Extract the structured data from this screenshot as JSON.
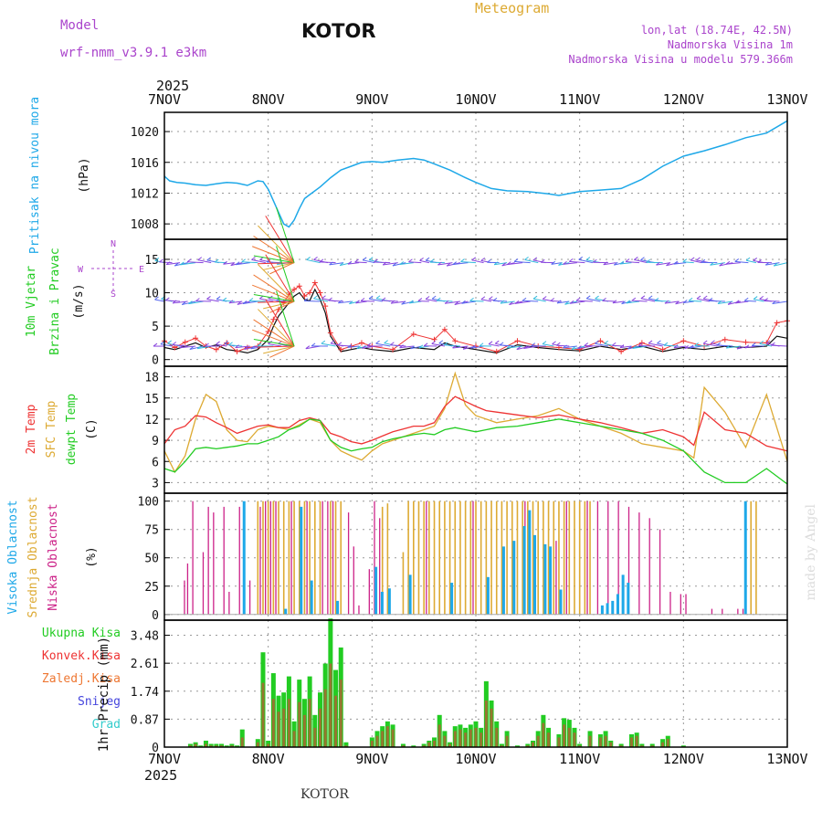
{
  "header": {
    "model_label": "Model",
    "model_name": "wrf-nmm_v3.9.1 e3km",
    "station": "KOTOR",
    "meteogram": "Meteogram",
    "lonlat": "lon,lat (18.74E, 42.5N)",
    "elevation": "Nadmorska Visina 1m",
    "model_elevation": "Nadmorska Visina u modelu 579.366m",
    "year_top": "2025",
    "year_bottom": "2025",
    "footer_station": "KOTOR",
    "credit": "made by Angel"
  },
  "colors": {
    "pressure": "#1ea8e8",
    "wind_green": "#22cc22",
    "temp2m": "#ee3333",
    "sfc": "#ddaa33",
    "dew": "#22cc22",
    "high_cloud": "#1ea8e8",
    "mid_cloud": "#ddaa33",
    "low_cloud": "#cc2288",
    "purple": "#aa44cc",
    "orange": "#ee7733",
    "blue": "#4444dd",
    "teal": "#33cccc"
  },
  "compass": {
    "n": "N",
    "w": "W",
    "e": "E",
    "s": "S"
  },
  "chart_data": {
    "type": "meteogram",
    "x_ticks": [
      "7NOV",
      "8NOV",
      "9NOV",
      "10NOV",
      "11NOV",
      "12NOV",
      "13NOV"
    ],
    "panels": {
      "pressure": {
        "ylabel": "Pritisak na nivou mora",
        "unit": "(hPa)",
        "yticks": [
          1008,
          1012,
          1016,
          1020
        ],
        "ylim": [
          1006,
          1022.5
        ],
        "x_days": [
          0,
          0.05,
          0.12,
          0.2,
          0.3,
          0.4,
          0.5,
          0.6,
          0.7,
          0.8,
          0.9,
          0.95,
          1.0,
          1.05,
          1.1,
          1.15,
          1.2,
          1.25,
          1.3,
          1.35,
          1.4,
          1.5,
          1.6,
          1.7,
          1.8,
          1.9,
          2.0,
          2.1,
          2.25,
          2.4,
          2.5,
          2.6,
          2.75,
          2.9,
          3.0,
          3.15,
          3.3,
          3.5,
          3.7,
          3.8,
          4.0,
          4.2,
          4.4,
          4.6,
          4.8,
          5.0,
          5.2,
          5.4,
          5.6,
          5.8,
          6.0
        ],
        "values": [
          1014.2,
          1013.6,
          1013.4,
          1013.3,
          1013.1,
          1013.0,
          1013.2,
          1013.4,
          1013.3,
          1013.0,
          1013.6,
          1013.5,
          1012.5,
          1011.0,
          1009.5,
          1008.0,
          1007.6,
          1008.5,
          1010.0,
          1011.3,
          1011.8,
          1012.8,
          1014.0,
          1015.0,
          1015.5,
          1016.0,
          1016.1,
          1016.0,
          1016.3,
          1016.5,
          1016.3,
          1015.8,
          1015.0,
          1014.0,
          1013.4,
          1012.6,
          1012.3,
          1012.2,
          1011.9,
          1011.7,
          1012.2,
          1012.4,
          1012.6,
          1013.8,
          1015.5,
          1016.8,
          1017.5,
          1018.3,
          1019.2,
          1019.8,
          1021.4
        ]
      },
      "wind": {
        "ylabel1": "10m Vjetar",
        "ylabel2": "Brzina i Pravac",
        "unit": "(m/s)",
        "yticks": [
          0,
          5,
          10,
          15
        ],
        "ylim": [
          -1,
          18
        ],
        "x_days": [
          0,
          0.1,
          0.2,
          0.3,
          0.4,
          0.5,
          0.6,
          0.7,
          0.8,
          0.9,
          1.0,
          1.05,
          1.1,
          1.15,
          1.2,
          1.25,
          1.3,
          1.35,
          1.4,
          1.45,
          1.5,
          1.55,
          1.6,
          1.7,
          1.8,
          1.9,
          2.0,
          2.2,
          2.4,
          2.6,
          2.7,
          2.8,
          3.0,
          3.2,
          3.4,
          3.6,
          3.8,
          4.0,
          4.2,
          4.4,
          4.6,
          4.8,
          5.0,
          5.2,
          5.4,
          5.6,
          5.8,
          5.9,
          6.0
        ],
        "speed": [
          1.8,
          1.5,
          2.0,
          2.5,
          1.8,
          2.2,
          1.5,
          1.3,
          1.0,
          1.5,
          3.0,
          5.0,
          6.5,
          7.5,
          8.5,
          9.5,
          10.0,
          9.0,
          8.8,
          10.5,
          9.0,
          7.0,
          3.5,
          1.2,
          1.5,
          1.8,
          1.5,
          1.2,
          1.8,
          1.5,
          2.5,
          2.0,
          1.5,
          1.0,
          2.2,
          1.8,
          1.5,
          1.3,
          2.0,
          1.5,
          2.0,
          1.2,
          1.8,
          1.5,
          2.0,
          1.8,
          2.0,
          3.5,
          3.2
        ],
        "gust": [
          2.8,
          1.8,
          2.6,
          3.2,
          2.0,
          1.5,
          2.5,
          1.2,
          1.8,
          2.0,
          4.2,
          6.0,
          7.5,
          8.5,
          9.8,
          10.5,
          11.0,
          9.5,
          10.0,
          11.5,
          10.0,
          8.0,
          4.0,
          1.5,
          2.0,
          2.5,
          2.0,
          1.5,
          3.8,
          3.0,
          4.5,
          2.8,
          2.0,
          1.2,
          2.8,
          2.0,
          1.8,
          1.5,
          2.8,
          1.2,
          2.5,
          1.5,
          2.8,
          2.0,
          3.0,
          2.6,
          2.5,
          5.5,
          5.8
        ]
      },
      "temperature": {
        "ylabel_t2m": "2m Temp",
        "ylabel_sfc": "SFC Temp",
        "ylabel_dew": "dewpt Temp",
        "unit": "(C)",
        "yticks": [
          3,
          6,
          9,
          12,
          15,
          18
        ],
        "ylim": [
          1.5,
          19.5
        ],
        "x_days": [
          0,
          0.1,
          0.2,
          0.3,
          0.4,
          0.5,
          0.6,
          0.7,
          0.8,
          0.9,
          1.0,
          1.1,
          1.2,
          1.3,
          1.4,
          1.5,
          1.6,
          1.7,
          1.8,
          1.9,
          2.0,
          2.1,
          2.2,
          2.3,
          2.4,
          2.5,
          2.6,
          2.7,
          2.8,
          2.9,
          3.0,
          3.1,
          3.2,
          3.4,
          3.6,
          3.8,
          4.0,
          4.2,
          4.4,
          4.6,
          4.8,
          5.0,
          5.1,
          5.2,
          5.4,
          5.6,
          5.8,
          6.0
        ],
        "t2m": [
          8.5,
          10.5,
          11.0,
          12.5,
          12.3,
          11.5,
          10.8,
          10.0,
          10.5,
          11.0,
          11.2,
          10.8,
          10.8,
          11.8,
          12.2,
          11.8,
          10.0,
          9.5,
          8.8,
          8.5,
          9.0,
          9.6,
          10.2,
          10.6,
          11.0,
          11.0,
          11.5,
          13.8,
          15.2,
          14.5,
          13.8,
          13.2,
          13.0,
          12.6,
          12.2,
          12.6,
          12.0,
          11.5,
          10.8,
          10.0,
          10.5,
          9.5,
          8.3,
          13.0,
          10.5,
          10.0,
          8.2,
          7.5
        ],
        "sfc": [
          7.5,
          4.5,
          6.8,
          12.0,
          15.5,
          14.5,
          10.5,
          9.0,
          8.8,
          10.5,
          11.0,
          10.8,
          10.5,
          11.2,
          12.0,
          11.5,
          9.0,
          7.5,
          6.8,
          6.2,
          7.5,
          8.5,
          9.0,
          9.5,
          10.0,
          10.5,
          11.0,
          13.5,
          18.5,
          14.0,
          12.5,
          12.0,
          11.5,
          12.0,
          12.5,
          13.5,
          12.0,
          11.0,
          10.0,
          8.5,
          8.0,
          7.5,
          6.5,
          16.5,
          13.0,
          8.0,
          15.5,
          6.0
        ],
        "dew": [
          5.0,
          4.5,
          6.0,
          7.8,
          8.0,
          7.8,
          8.0,
          8.2,
          8.5,
          8.5,
          9.0,
          9.5,
          10.5,
          11.0,
          12.0,
          11.8,
          9.0,
          8.0,
          7.5,
          7.8,
          8.0,
          8.8,
          9.2,
          9.5,
          9.8,
          10.0,
          9.8,
          10.5,
          10.8,
          10.5,
          10.2,
          10.5,
          10.8,
          11.0,
          11.5,
          12.0,
          11.5,
          11.0,
          10.5,
          10.0,
          9.0,
          7.5,
          6.0,
          4.5,
          3.0,
          3.0,
          5.0,
          2.8
        ]
      },
      "clouds": {
        "ylabel_high": "Visoka Oblacnost",
        "ylabel_mid": "Srednja Oblacnost",
        "ylabel_low": "Niska Oblacnost",
        "unit": "(%)",
        "yticks": [
          0,
          25,
          50,
          75,
          100
        ],
        "ylim": [
          -5,
          107
        ],
        "high_x": [
          0.75,
          1.15,
          1.3,
          1.4,
          1.65,
          2.02,
          2.08,
          2.15,
          2.35,
          2.75,
          3.1,
          3.25,
          3.35,
          3.45,
          3.5,
          3.55,
          3.65,
          3.7,
          3.8,
          4.2,
          4.25,
          4.3,
          4.35,
          4.4,
          4.45,
          5.58
        ],
        "high_y": [
          100,
          5,
          95,
          30,
          12,
          42,
          20,
          23,
          35,
          28,
          33,
          60,
          65,
          78,
          92,
          70,
          62,
          60,
          22,
          8,
          10,
          12,
          18,
          35,
          28,
          100
        ],
        "mid_x": [
          0.9,
          0.95,
          1.0,
          1.05,
          1.1,
          1.15,
          1.2,
          1.25,
          1.3,
          1.35,
          1.4,
          1.45,
          1.5,
          1.6,
          1.65,
          1.7,
          2.1,
          2.15,
          2.3,
          2.35,
          2.4,
          2.45,
          2.5,
          2.55,
          2.6,
          2.65,
          2.7,
          2.75,
          2.8,
          2.85,
          2.9,
          2.95,
          3.0,
          3.05,
          3.1,
          3.15,
          3.2,
          3.25,
          3.3,
          3.35,
          3.4,
          3.45,
          3.5,
          3.55,
          3.6,
          3.65,
          3.7,
          3.75,
          3.8,
          3.85,
          3.9,
          3.95,
          4.0,
          4.05,
          4.1,
          5.6,
          5.65,
          5.7
        ],
        "mid_y": [
          100,
          100,
          100,
          100,
          100,
          100,
          100,
          100,
          100,
          100,
          100,
          100,
          100,
          100,
          100,
          100,
          95,
          98,
          55,
          100,
          100,
          100,
          100,
          100,
          100,
          100,
          100,
          100,
          100,
          100,
          100,
          100,
          100,
          100,
          100,
          100,
          100,
          100,
          100,
          100,
          100,
          100,
          100,
          100,
          100,
          100,
          100,
          100,
          100,
          100,
          100,
          100,
          100,
          100,
          100,
          100,
          100,
          100
        ],
        "low_x": [
          0.22,
          0.25,
          0.3,
          0.4,
          0.45,
          0.5,
          0.6,
          0.65,
          0.75,
          0.85,
          0.95,
          1.0,
          1.05,
          1.1,
          1.25,
          1.4,
          1.55,
          1.6,
          1.65,
          1.8,
          1.85,
          1.9,
          2.0,
          2.05,
          2.1,
          2.55,
          3.0,
          3.5,
          3.8,
          3.9,
          4.1,
          4.2,
          4.3,
          4.4,
          4.5,
          4.6,
          4.7,
          4.8,
          4.9,
          5.0,
          5.05,
          5.3,
          5.4,
          5.55,
          5.6
        ],
        "low_y": [
          30,
          45,
          100,
          55,
          95,
          90,
          95,
          20,
          95,
          30,
          95,
          100,
          100,
          100,
          100,
          100,
          100,
          100,
          100,
          90,
          60,
          8,
          40,
          100,
          85,
          100,
          100,
          100,
          65,
          100,
          100,
          100,
          100,
          100,
          95,
          90,
          85,
          75,
          20,
          18,
          18,
          5,
          5,
          5,
          5
        ]
      },
      "precip": {
        "ylabel": "1hr Precip (mm)",
        "legend": [
          "Ukupna Kisa",
          "Konvek.Kisa",
          "Zaledj.Kisa",
          "Snijeg",
          "Grad"
        ],
        "yticks": [
          "0",
          "0.87",
          "1.74",
          "2.61",
          "3.48"
        ],
        "ytick_values": [
          0,
          0.87,
          1.74,
          2.61,
          3.48
        ],
        "ylim": [
          0,
          3.95
        ],
        "x": [
          0.25,
          0.3,
          0.35,
          0.4,
          0.45,
          0.5,
          0.55,
          0.6,
          0.65,
          0.7,
          0.75,
          0.9,
          0.95,
          1.0,
          1.05,
          1.1,
          1.15,
          1.2,
          1.25,
          1.3,
          1.35,
          1.4,
          1.45,
          1.5,
          1.55,
          1.6,
          1.65,
          1.7,
          1.75,
          2.0,
          2.05,
          2.1,
          2.15,
          2.2,
          2.3,
          2.4,
          2.5,
          2.55,
          2.6,
          2.65,
          2.7,
          2.75,
          2.8,
          2.85,
          2.9,
          2.95,
          3.0,
          3.05,
          3.1,
          3.15,
          3.2,
          3.25,
          3.3,
          3.4,
          3.5,
          3.55,
          3.6,
          3.65,
          3.7,
          3.8,
          3.85,
          3.9,
          3.95,
          4.0,
          4.1,
          4.2,
          4.25,
          4.3,
          4.4,
          4.5,
          4.55,
          4.6,
          4.7,
          4.8,
          4.85,
          5.0
        ],
        "total": [
          0.1,
          0.15,
          0.05,
          0.2,
          0.1,
          0.1,
          0.1,
          0.05,
          0.1,
          0.05,
          0.55,
          0.25,
          2.95,
          0.2,
          2.3,
          1.6,
          1.7,
          2.2,
          0.8,
          2.1,
          1.5,
          2.2,
          1.0,
          1.7,
          2.6,
          4.0,
          2.4,
          3.1,
          0.15,
          0.3,
          0.5,
          0.65,
          0.8,
          0.7,
          0.1,
          0.05,
          0.1,
          0.2,
          0.3,
          1.0,
          0.5,
          0.15,
          0.65,
          0.7,
          0.6,
          0.7,
          0.8,
          0.6,
          2.05,
          1.45,
          0.8,
          0.1,
          0.5,
          0.05,
          0.1,
          0.2,
          0.5,
          1.0,
          0.6,
          0.4,
          0.9,
          0.85,
          0.6,
          0.1,
          0.5,
          0.4,
          0.5,
          0.2,
          0.1,
          0.4,
          0.45,
          0.1,
          0.1,
          0.25,
          0.35,
          0.05
        ],
        "convective": [
          0.05,
          0.1,
          0.02,
          0.1,
          0.05,
          0.05,
          0.05,
          0.02,
          0.05,
          0.02,
          0.3,
          0.15,
          2.0,
          0.1,
          1.5,
          1.1,
          1.2,
          1.5,
          0.5,
          1.4,
          1.0,
          1.5,
          0.6,
          1.2,
          1.8,
          2.6,
          1.6,
          2.1,
          0.05,
          0.2,
          0.35,
          0.5,
          0.65,
          0.55,
          0.05,
          0.02,
          0.05,
          0.15,
          0.2,
          0.7,
          0.35,
          0.1,
          0.5,
          0.55,
          0.45,
          0.55,
          0.6,
          0.45,
          1.45,
          1.2,
          0.6,
          0.05,
          0.35,
          0.02,
          0.05,
          0.15,
          0.35,
          0.75,
          0.45,
          0.3,
          0.7,
          0.6,
          0.45,
          0.05,
          0.35,
          0.3,
          0.35,
          0.15,
          0.05,
          0.3,
          0.35,
          0.05,
          0.05,
          0.15,
          0.25,
          0.02
        ]
      }
    }
  }
}
